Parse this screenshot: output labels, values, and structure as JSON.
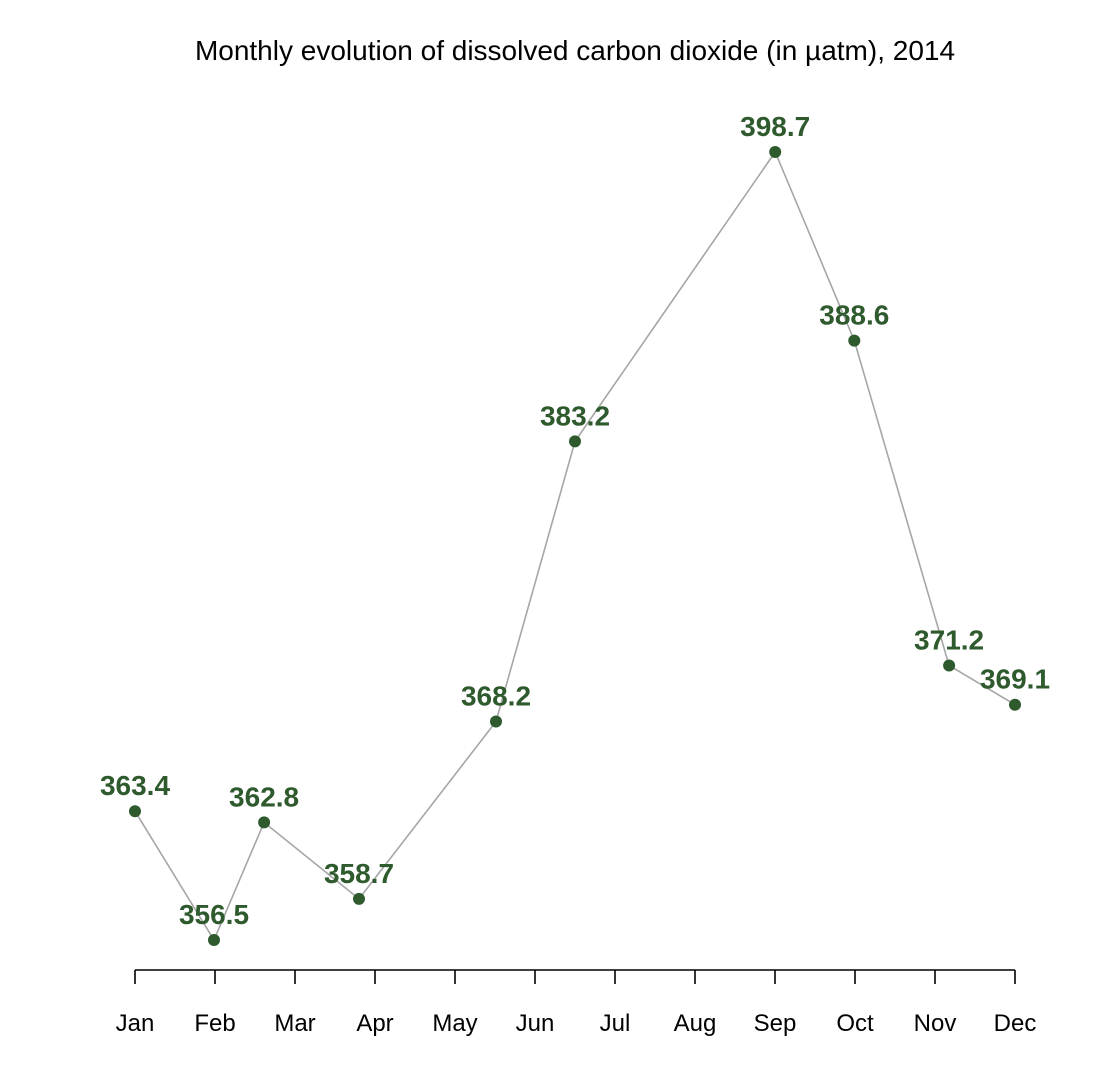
{
  "chart_data": {
    "type": "line",
    "title": "Monthly evolution of dissolved carbon dioxide (in µatm), 2014",
    "xlabel": "",
    "ylabel": "",
    "x_axis": {
      "type": "date",
      "ticks": [
        "Jan",
        "Feb",
        "Mar",
        "Apr",
        "May",
        "Jun",
        "Jul",
        "Aug",
        "Sep",
        "Oct",
        "Nov",
        "Dec"
      ],
      "range": [
        "2014-01-01",
        "2014-12-01"
      ]
    },
    "y_axis": {
      "visible": false,
      "range": [
        356.5,
        398.7
      ]
    },
    "grid": false,
    "legend": "none",
    "series": [
      {
        "points": [
          {
            "x": "2014-01-01",
            "y": 363.4,
            "label": "363.4"
          },
          {
            "x": "2014-01-31",
            "y": 356.5,
            "label": "356.5"
          },
          {
            "x": "2014-02-19",
            "y": 362.8,
            "label": "362.8"
          },
          {
            "x": "2014-03-27",
            "y": 358.7,
            "label": "358.7"
          },
          {
            "x": "2014-05-18",
            "y": 368.2,
            "label": "368.2"
          },
          {
            "x": "2014-06-17",
            "y": 383.2,
            "label": "383.2"
          },
          {
            "x": "2014-09-01",
            "y": 398.7,
            "label": "398.7"
          },
          {
            "x": "2014-10-01",
            "y": 388.6,
            "label": "388.6"
          },
          {
            "x": "2014-11-06",
            "y": 371.2,
            "label": "371.2"
          },
          {
            "x": "2014-12-01",
            "y": 369.1,
            "label": "369.1"
          }
        ]
      }
    ],
    "colors": {
      "line": "#a6a6a6",
      "marker": "#2e5a2e",
      "label": "#2e5a2e",
      "axis": "#000000"
    }
  }
}
